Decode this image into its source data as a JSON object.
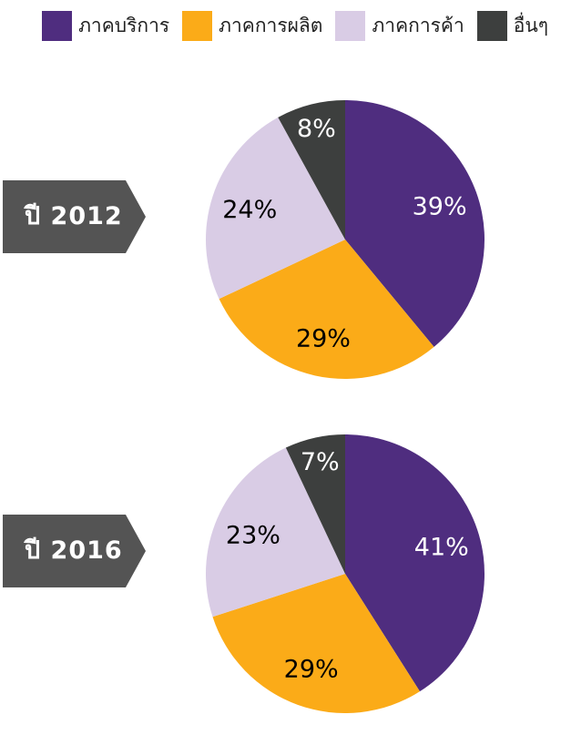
{
  "chart_data": [
    {
      "type": "pie",
      "title": "ปี 2012",
      "categories": [
        "ภาคบริการ",
        "ภาคการผลิต",
        "ภาคการค้า",
        "อื่นๆ"
      ],
      "values": [
        39,
        29,
        24,
        8
      ],
      "labels": [
        "39%",
        "29%",
        "24%",
        "8%"
      ]
    },
    {
      "type": "pie",
      "title": "ปี 2016",
      "categories": [
        "ภาคบริการ",
        "ภาคการผลิต",
        "ภาคการค้า",
        "อื่นๆ"
      ],
      "values": [
        41,
        29,
        23,
        7
      ],
      "labels": [
        "41%",
        "29%",
        "23%",
        "7%"
      ]
    }
  ],
  "legend": {
    "position": "top-right",
    "items": [
      {
        "label": "ภาคบริการ",
        "color": "#4f2d7f"
      },
      {
        "label": "ภาคการผลิต",
        "color": "#fbab18"
      },
      {
        "label": "ภาคการค้า",
        "color": "#d9cce5"
      },
      {
        "label": "อื่นๆ",
        "color": "#3d3f3e"
      }
    ]
  },
  "label_colors": [
    "#ffffff",
    "#000000",
    "#000000",
    "#ffffff"
  ],
  "banner_color": "#545454"
}
